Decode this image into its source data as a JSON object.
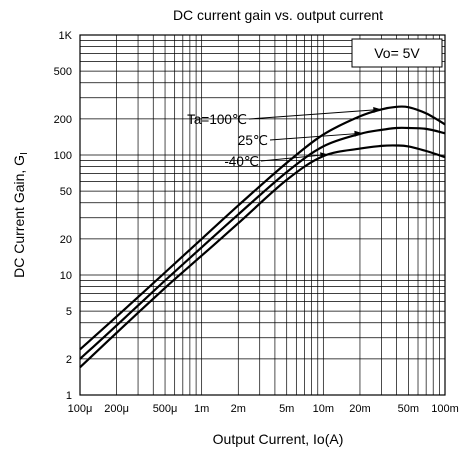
{
  "chart_data": {
    "type": "line",
    "title": "DC current gain vs. output current",
    "xlabel": "Output Current, Io(A)",
    "ylabel": "DC Current Gain, GI",
    "ylabel_main": "DC Current Gain, G",
    "ylabel_sub": "I",
    "x_scale": "log",
    "y_scale": "log",
    "xlim": [
      0.0001,
      0.1
    ],
    "ylim": [
      1,
      1000
    ],
    "grid": true,
    "x_ticks": [
      {
        "value": 0.0001,
        "label": "100μ"
      },
      {
        "value": 0.0002,
        "label": "200μ"
      },
      {
        "value": 0.0005,
        "label": "500μ"
      },
      {
        "value": 0.001,
        "label": "1m"
      },
      {
        "value": 0.002,
        "label": "2m"
      },
      {
        "value": 0.005,
        "label": "5m"
      },
      {
        "value": 0.01,
        "label": "10m"
      },
      {
        "value": 0.02,
        "label": "20m"
      },
      {
        "value": 0.05,
        "label": "50m"
      },
      {
        "value": 0.1,
        "label": "100m"
      }
    ],
    "y_ticks": [
      {
        "value": 1,
        "label": "1"
      },
      {
        "value": 2,
        "label": "2"
      },
      {
        "value": 5,
        "label": "5"
      },
      {
        "value": 10,
        "label": "10"
      },
      {
        "value": 20,
        "label": "20"
      },
      {
        "value": 50,
        "label": "50"
      },
      {
        "value": 100,
        "label": "100"
      },
      {
        "value": 200,
        "label": "200"
      },
      {
        "value": 500,
        "label": "500"
      },
      {
        "value": 1000,
        "label": "1K"
      }
    ],
    "condition_label": "Vo= 5V",
    "series": [
      {
        "name": "Ta=100℃",
        "x": [
          0.0001,
          0.0002,
          0.0005,
          0.001,
          0.002,
          0.005,
          0.01,
          0.02,
          0.03,
          0.04,
          0.05,
          0.07,
          0.1
        ],
        "y": [
          2.4,
          4.5,
          10.5,
          20,
          38,
          86,
          148,
          210,
          240,
          252,
          250,
          222,
          180
        ]
      },
      {
        "name": "25℃",
        "x": [
          0.0001,
          0.0002,
          0.0005,
          0.001,
          0.002,
          0.005,
          0.01,
          0.02,
          0.03,
          0.04,
          0.05,
          0.07,
          0.1
        ],
        "y": [
          2.0,
          3.8,
          9.0,
          17,
          32,
          72,
          118,
          150,
          162,
          168,
          168,
          165,
          152
        ]
      },
      {
        "name": "-40℃",
        "x": [
          0.0001,
          0.0002,
          0.0005,
          0.001,
          0.002,
          0.005,
          0.01,
          0.02,
          0.03,
          0.04,
          0.05,
          0.07,
          0.1
        ],
        "y": [
          1.7,
          3.3,
          7.8,
          14.5,
          27,
          62,
          98,
          113,
          119,
          120,
          118,
          108,
          96
        ]
      }
    ]
  }
}
